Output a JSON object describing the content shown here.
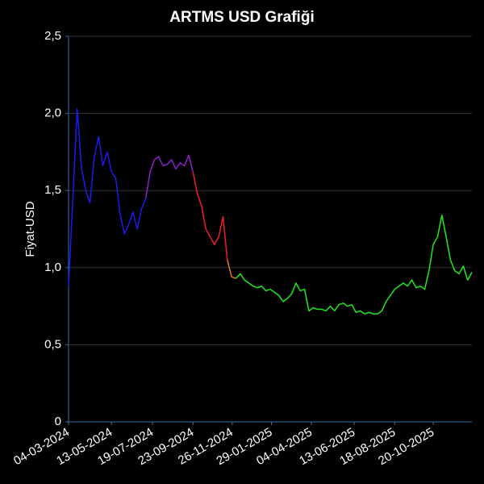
{
  "chart_data": {
    "type": "line",
    "title": "ARTMS USD Grafiği",
    "y_label": "Fiyat-USD",
    "xlim": [
      "2024-03-04",
      "2025-12-22"
    ],
    "xticks": [
      {
        "value": "2024-03-04",
        "label": "04-03-2024"
      },
      {
        "value": "2024-05-13",
        "label": "13-05-2024"
      },
      {
        "value": "2024-07-19",
        "label": "19-07-2024"
      },
      {
        "value": "2024-09-23",
        "label": "23-09-2024"
      },
      {
        "value": "2024-11-26",
        "label": "26-11-2024"
      },
      {
        "value": "2025-01-29",
        "label": "29-01-2025"
      },
      {
        "value": "2025-04-04",
        "label": "04-04-2025"
      },
      {
        "value": "2025-06-13",
        "label": "13-06-2025"
      },
      {
        "value": "2025-08-18",
        "label": "18-08-2025"
      },
      {
        "value": "2025-10-20",
        "label": "20-10-2025"
      }
    ],
    "ylim": [
      0,
      2.5
    ],
    "yticks": [
      0,
      {
        "value": 0.5,
        "label": "0,5"
      },
      {
        "value": 1.0,
        "label": "1,0"
      },
      {
        "value": 1.5,
        "label": "1,5"
      },
      {
        "value": 2.0,
        "label": "2,0"
      },
      {
        "value": 2.5,
        "label": "2,5"
      }
    ],
    "grid": true,
    "series": [
      {
        "color": "#1c1cf0",
        "x": [
          "2024-03-04",
          "2024-03-11",
          "2024-03-18",
          "2024-03-25",
          "2024-04-01",
          "2024-04-08",
          "2024-04-15",
          "2024-04-22",
          "2024-04-29",
          "2024-05-06",
          "2024-05-13",
          "2024-05-20",
          "2024-05-27",
          "2024-06-03",
          "2024-06-10",
          "2024-06-17",
          "2024-06-24",
          "2024-07-01",
          "2024-07-08"
        ],
        "values": [
          0.88,
          1.45,
          2.03,
          1.65,
          1.5,
          1.42,
          1.72,
          1.85,
          1.66,
          1.75,
          1.62,
          1.58,
          1.35,
          1.22,
          1.28,
          1.36,
          1.25,
          1.38,
          1.45
        ]
      },
      {
        "color": "#8a20c8",
        "x": [
          "2024-07-08",
          "2024-07-15",
          "2024-07-22",
          "2024-07-29",
          "2024-08-05",
          "2024-08-12",
          "2024-08-19",
          "2024-08-26",
          "2024-09-02",
          "2024-09-09",
          "2024-09-16",
          "2024-09-23"
        ],
        "values": [
          1.45,
          1.62,
          1.7,
          1.72,
          1.66,
          1.67,
          1.7,
          1.64,
          1.68,
          1.66,
          1.73,
          1.62
        ]
      },
      {
        "color": "#f01c2c",
        "x": [
          "2024-09-23",
          "2024-09-30",
          "2024-10-07",
          "2024-10-14",
          "2024-10-21",
          "2024-10-28",
          "2024-11-04",
          "2024-11-11",
          "2024-11-18"
        ],
        "values": [
          1.62,
          1.48,
          1.4,
          1.25,
          1.2,
          1.15,
          1.2,
          1.33,
          1.05
        ]
      },
      {
        "color": "#e07820",
        "x": [
          "2024-11-18",
          "2024-11-25",
          "2024-12-02"
        ],
        "values": [
          1.05,
          0.94,
          0.93
        ]
      },
      {
        "color": "#22e61e",
        "x": [
          "2024-12-02",
          "2024-12-09",
          "2024-12-16",
          "2024-12-23",
          "2024-12-30",
          "2025-01-06",
          "2025-01-13",
          "2025-01-20",
          "2025-01-27",
          "2025-02-03",
          "2025-02-10",
          "2025-02-17",
          "2025-02-24",
          "2025-03-03",
          "2025-03-10",
          "2025-03-17",
          "2025-03-24",
          "2025-03-31",
          "2025-04-07",
          "2025-04-14",
          "2025-04-21",
          "2025-04-28",
          "2025-05-05",
          "2025-05-12",
          "2025-05-19",
          "2025-05-26",
          "2025-06-02",
          "2025-06-09",
          "2025-06-16",
          "2025-06-23",
          "2025-06-30",
          "2025-07-07",
          "2025-07-14",
          "2025-07-21",
          "2025-07-28",
          "2025-08-04",
          "2025-08-11",
          "2025-08-18",
          "2025-08-25",
          "2025-09-01",
          "2025-09-08",
          "2025-09-15",
          "2025-09-22",
          "2025-09-29",
          "2025-10-06",
          "2025-10-13",
          "2025-10-20",
          "2025-10-27",
          "2025-11-03",
          "2025-11-10",
          "2025-11-17",
          "2025-11-24",
          "2025-12-01",
          "2025-12-08",
          "2025-12-15",
          "2025-12-22"
        ],
        "values": [
          0.93,
          0.96,
          0.92,
          0.9,
          0.88,
          0.87,
          0.88,
          0.85,
          0.86,
          0.84,
          0.82,
          0.78,
          0.8,
          0.83,
          0.9,
          0.85,
          0.86,
          0.72,
          0.74,
          0.73,
          0.73,
          0.72,
          0.75,
          0.72,
          0.76,
          0.77,
          0.75,
          0.76,
          0.71,
          0.72,
          0.7,
          0.71,
          0.7,
          0.7,
          0.72,
          0.78,
          0.82,
          0.86,
          0.88,
          0.9,
          0.88,
          0.92,
          0.87,
          0.88,
          0.86,
          0.98,
          1.15,
          1.2,
          1.34,
          1.2,
          1.05,
          0.98,
          0.96,
          1.01,
          0.92,
          0.97
        ]
      }
    ]
  }
}
